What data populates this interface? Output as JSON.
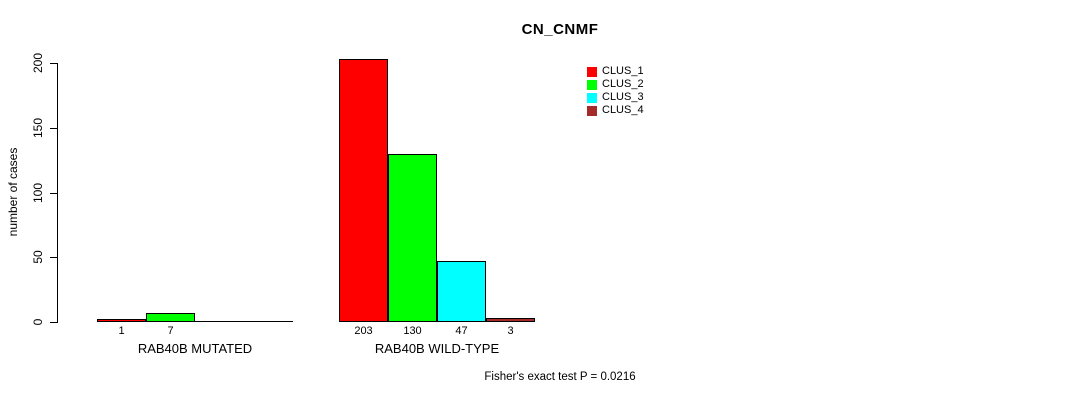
{
  "chart_data": {
    "type": "bar",
    "title": "CN_CNMF",
    "ylabel": "number of cases",
    "xlabel": "",
    "ylim": [
      0,
      200
    ],
    "yticks": [
      0,
      50,
      100,
      150,
      200
    ],
    "grid": false,
    "categories": [
      "RAB40B MUTATED",
      "RAB40B WILD-TYPE"
    ],
    "series": [
      {
        "name": "CLUS_1",
        "color": "#FF0000",
        "values": [
          1,
          203
        ]
      },
      {
        "name": "CLUS_2",
        "color": "#00FF00",
        "values": [
          7,
          130
        ]
      },
      {
        "name": "CLUS_3",
        "color": "#00FFFF",
        "values": [
          0,
          47
        ]
      },
      {
        "name": "CLUS_4",
        "color": "#A52A2A",
        "values": [
          0,
          3
        ]
      }
    ],
    "bar_value_labels": [
      [
        "1",
        "7",
        "",
        ""
      ],
      [
        "203",
        "130",
        "47",
        "3"
      ]
    ],
    "legend_position": "top-right",
    "legend_entries": [
      "CLUS_1",
      "CLUS_2",
      "CLUS_3",
      "CLUS_4"
    ],
    "annotation": "Fisher's exact test P = 0.0216"
  }
}
